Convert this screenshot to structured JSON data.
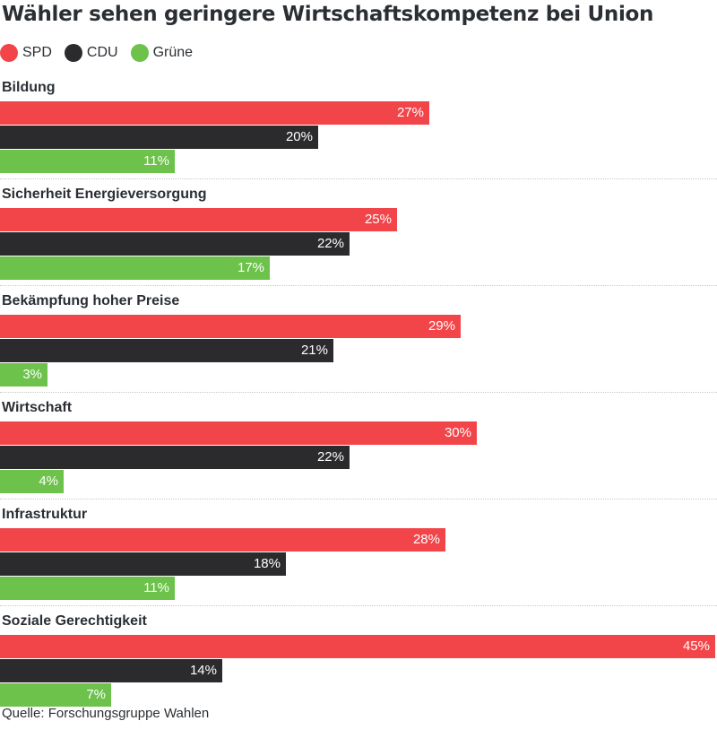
{
  "title": "Wähler sehen geringere Wirtschaftskompetenz bei Union",
  "source": "Quelle: Forschungsgruppe Wahlen",
  "colors": {
    "SPD": "#f2454a",
    "CDU": "#2b2b2d",
    "Grüne": "#6cc24a"
  },
  "chart_data": {
    "type": "bar",
    "orientation": "horizontal",
    "title": "Wähler sehen geringere Wirtschaftskompetenz bei Union",
    "categories": [
      "Bildung",
      "Sicherheit Energieversorgung",
      "Bekämpfung hoher Preise",
      "Wirtschaft",
      "Infrastruktur",
      "Soziale Gerechtigkeit"
    ],
    "series": [
      {
        "name": "SPD",
        "values": [
          27,
          25,
          29,
          30,
          28,
          45
        ],
        "labels": [
          "27%",
          "25%",
          "29%",
          "30%",
          "28%",
          "45%"
        ]
      },
      {
        "name": "CDU",
        "values": [
          20,
          22,
          21,
          22,
          18,
          14
        ],
        "labels": [
          "20%",
          "22%",
          "21%",
          "22%",
          "18%",
          "14%"
        ]
      },
      {
        "name": "Grüne",
        "values": [
          11,
          17,
          3,
          4,
          11,
          7
        ],
        "labels": [
          "11%",
          "17%",
          "3%",
          "4%",
          "11%",
          "7%"
        ]
      }
    ],
    "unit": "%",
    "xlim": [
      0,
      45
    ],
    "legend": "top-left",
    "grid": false
  }
}
